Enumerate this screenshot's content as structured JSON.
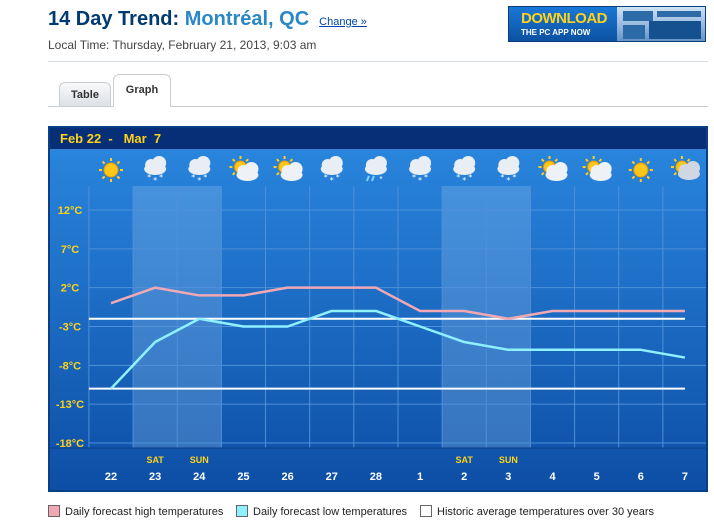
{
  "header": {
    "title_prefix": "14 Day Trend: ",
    "city": "Montréal, QC",
    "change_link": "Change »",
    "local_time": "Local Time: Thursday, February 21, 2013, 9:03 am"
  },
  "ad": {
    "headline": "DOWNLOAD",
    "subline": "THE PC APP NOW"
  },
  "tabs": [
    {
      "label": "Table",
      "active": false
    },
    {
      "label": "Graph",
      "active": true
    }
  ],
  "chart_data": {
    "type": "line",
    "date_range": "Feb 22  -   Mar  7",
    "x": [
      "22",
      "23",
      "24",
      "25",
      "26",
      "27",
      "28",
      "1",
      "2",
      "3",
      "4",
      "5",
      "6",
      "7"
    ],
    "weekend_labels": [
      "",
      "SAT",
      "SUN",
      "",
      "",
      "",
      "",
      "",
      "SAT",
      "SUN",
      "",
      "",
      "",
      ""
    ],
    "weekend_shaded": [
      1,
      2,
      8,
      9
    ],
    "icons": [
      "sunny-icon",
      "snow-icon",
      "snow-icon",
      "sun-cloud-icon",
      "sun-cloud-icon",
      "snow-icon",
      "rain-snow-icon",
      "snow-icon",
      "snow-icon",
      "snow-icon",
      "sun-cloud-icon",
      "sun-cloud-icon",
      "sunny-icon",
      "partly-cloudy-icon"
    ],
    "y_ticks": [
      "12°C",
      "7°C",
      "2°C",
      "-3°C",
      "-8°C",
      "-13°C",
      "-18°C"
    ],
    "y_tick_values": [
      12,
      7,
      2,
      -3,
      -8,
      -13,
      -18
    ],
    "ylim": [
      -18,
      12
    ],
    "series": [
      {
        "name": "Daily forecast high temperatures",
        "color": "#f0a8b4",
        "values": [
          0,
          2,
          1,
          1,
          2,
          2,
          2,
          -1,
          -1,
          -2,
          -1,
          -1,
          -1,
          -1
        ]
      },
      {
        "name": "Daily forecast low temperatures",
        "color": "#8ff0ff",
        "values": [
          -11,
          -5,
          -2,
          -3,
          -3,
          -1,
          -1,
          -3,
          -5,
          -6,
          -6,
          -6,
          -6,
          -7
        ]
      }
    ],
    "historic": {
      "name": "Historic average temperatures over 30 years",
      "color": "#ffffff",
      "high": -2,
      "low": -11
    },
    "grid": true
  },
  "legend": {
    "high": "Daily forecast high temperatures",
    "low": "Daily forecast low temperatures",
    "historic": "Historic average temperatures over 30 years"
  }
}
